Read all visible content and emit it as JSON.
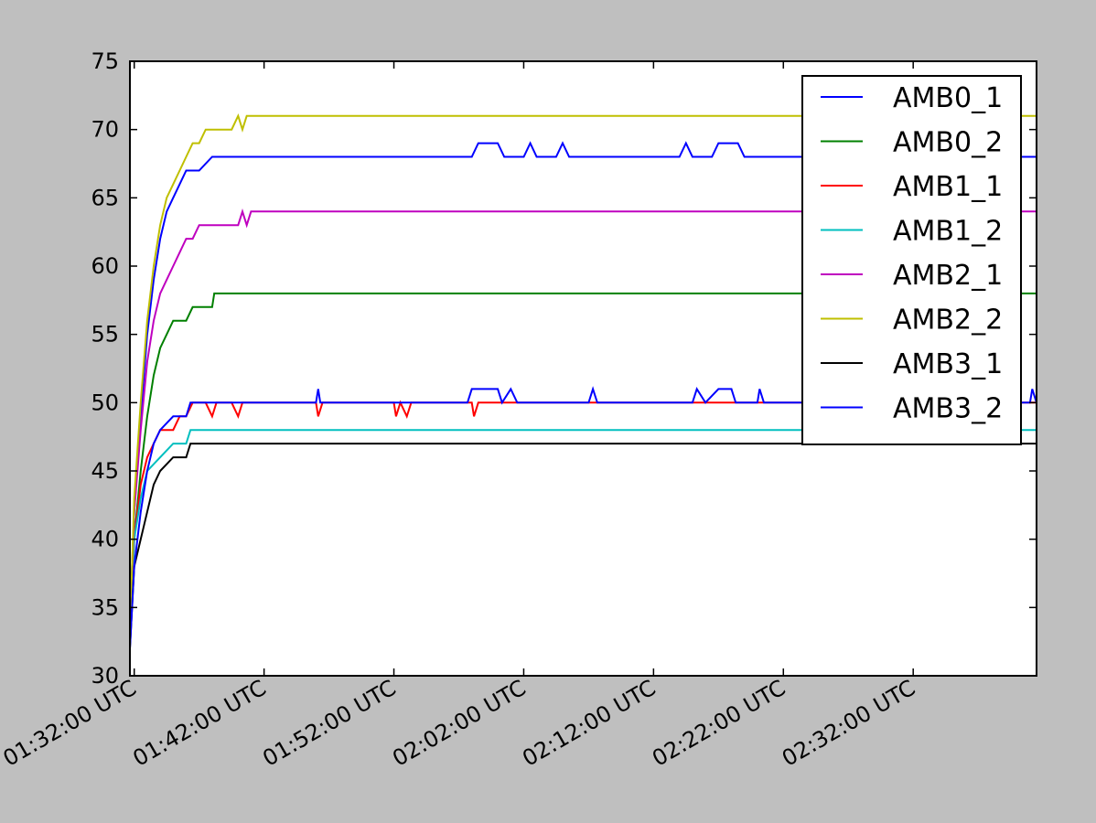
{
  "chart_data": {
    "type": "line",
    "title": "",
    "xlabel": "",
    "ylabel": "",
    "ylim": [
      30,
      75
    ],
    "yticks": [
      30,
      35,
      40,
      45,
      50,
      55,
      60,
      65,
      70,
      75
    ],
    "xlim": [
      "01:31:40 UTC",
      "02:41:30 UTC"
    ],
    "xticks": [
      "01:32:00 UTC",
      "01:42:00 UTC",
      "01:52:00 UTC",
      "02:02:00 UTC",
      "02:12:00 UTC",
      "02:22:00 UTC",
      "02:32:00 UTC"
    ],
    "legend": "top-right",
    "grid": false,
    "series": [
      {
        "name": "AMB0_1",
        "color": "#0000ff",
        "points": [
          [
            "01:31:40",
            34
          ],
          [
            "01:32:00",
            42
          ],
          [
            "01:32:30",
            49
          ],
          [
            "01:33:00",
            55
          ],
          [
            "01:33:30",
            59
          ],
          [
            "01:34:00",
            62
          ],
          [
            "01:34:30",
            64
          ],
          [
            "01:35:00",
            65
          ],
          [
            "01:35:30",
            66
          ],
          [
            "01:36:00",
            67
          ],
          [
            "01:37:00",
            67
          ],
          [
            "01:38:00",
            68
          ],
          [
            "01:58:00",
            68
          ],
          [
            "01:58:30",
            69
          ],
          [
            "02:00:00",
            69
          ],
          [
            "02:00:30",
            68
          ],
          [
            "02:02:00",
            68
          ],
          [
            "02:02:30",
            69
          ],
          [
            "02:03:00",
            68
          ],
          [
            "02:04:30",
            68
          ],
          [
            "02:05:00",
            69
          ],
          [
            "02:05:30",
            68
          ],
          [
            "02:14:00",
            68
          ],
          [
            "02:14:30",
            69
          ],
          [
            "02:15:00",
            68
          ],
          [
            "02:16:30",
            68
          ],
          [
            "02:17:00",
            69
          ],
          [
            "02:18:30",
            69
          ],
          [
            "02:19:00",
            68
          ],
          [
            "02:41:30",
            68
          ]
        ]
      },
      {
        "name": "AMB0_2",
        "color": "#008000",
        "points": [
          [
            "01:31:40",
            33
          ],
          [
            "01:32:00",
            40
          ],
          [
            "01:32:30",
            45
          ],
          [
            "01:33:00",
            49
          ],
          [
            "01:33:30",
            52
          ],
          [
            "01:34:00",
            54
          ],
          [
            "01:34:30",
            55
          ],
          [
            "01:35:00",
            56
          ],
          [
            "01:36:00",
            56
          ],
          [
            "01:36:30",
            57
          ],
          [
            "01:38:00",
            57
          ],
          [
            "01:38:10",
            58
          ],
          [
            "02:41:30",
            58
          ]
        ]
      },
      {
        "name": "AMB1_1",
        "color": "#ff0000",
        "points": [
          [
            "01:31:40",
            33
          ],
          [
            "01:32:00",
            40
          ],
          [
            "01:32:30",
            44
          ],
          [
            "01:33:00",
            46
          ],
          [
            "01:33:30",
            47
          ],
          [
            "01:34:00",
            48
          ],
          [
            "01:35:00",
            48
          ],
          [
            "01:35:30",
            49
          ],
          [
            "01:36:00",
            49
          ],
          [
            "01:36:30",
            50
          ],
          [
            "01:37:30",
            50
          ],
          [
            "01:38:00",
            49
          ],
          [
            "01:38:20",
            50
          ],
          [
            "01:39:30",
            50
          ],
          [
            "01:40:00",
            49
          ],
          [
            "01:40:20",
            50
          ],
          [
            "01:46:00",
            50
          ],
          [
            "01:46:10",
            49
          ],
          [
            "01:46:30",
            50
          ],
          [
            "01:52:00",
            50
          ],
          [
            "01:52:10",
            49
          ],
          [
            "01:52:30",
            50
          ],
          [
            "01:53:00",
            49
          ],
          [
            "01:53:20",
            50
          ],
          [
            "01:58:00",
            50
          ],
          [
            "01:58:10",
            49
          ],
          [
            "01:58:30",
            50
          ],
          [
            "02:41:30",
            50
          ]
        ]
      },
      {
        "name": "AMB1_2",
        "color": "#00bfbf",
        "points": [
          [
            "01:31:40",
            33
          ],
          [
            "01:32:00",
            40
          ],
          [
            "01:32:30",
            43
          ],
          [
            "01:33:00",
            45
          ],
          [
            "01:34:00",
            46
          ],
          [
            "01:35:00",
            47
          ],
          [
            "01:36:00",
            47
          ],
          [
            "01:36:20",
            48
          ],
          [
            "02:41:30",
            48
          ]
        ]
      },
      {
        "name": "AMB2_1",
        "color": "#bf00bf",
        "points": [
          [
            "01:31:40",
            33
          ],
          [
            "01:32:00",
            42
          ],
          [
            "01:32:30",
            48
          ],
          [
            "01:33:00",
            53
          ],
          [
            "01:33:30",
            56
          ],
          [
            "01:34:00",
            58
          ],
          [
            "01:34:30",
            59
          ],
          [
            "01:35:00",
            60
          ],
          [
            "01:35:30",
            61
          ],
          [
            "01:36:00",
            62
          ],
          [
            "01:36:30",
            62
          ],
          [
            "01:37:00",
            63
          ],
          [
            "01:40:00",
            63
          ],
          [
            "01:40:20",
            64
          ],
          [
            "01:40:40",
            63
          ],
          [
            "01:41:00",
            64
          ],
          [
            "02:41:30",
            64
          ]
        ]
      },
      {
        "name": "AMB2_2",
        "color": "#bfbf00",
        "points": [
          [
            "01:31:40",
            33
          ],
          [
            "01:32:00",
            43
          ],
          [
            "01:32:30",
            50
          ],
          [
            "01:33:00",
            56
          ],
          [
            "01:33:30",
            60
          ],
          [
            "01:34:00",
            63
          ],
          [
            "01:34:30",
            65
          ],
          [
            "01:35:00",
            66
          ],
          [
            "01:35:30",
            67
          ],
          [
            "01:36:00",
            68
          ],
          [
            "01:36:30",
            69
          ],
          [
            "01:37:00",
            69
          ],
          [
            "01:37:30",
            70
          ],
          [
            "01:39:30",
            70
          ],
          [
            "01:40:00",
            71
          ],
          [
            "01:40:20",
            70
          ],
          [
            "01:40:40",
            71
          ],
          [
            "02:41:30",
            71
          ]
        ]
      },
      {
        "name": "AMB3_1",
        "color": "#000000",
        "points": [
          [
            "01:31:40",
            32
          ],
          [
            "01:32:00",
            38
          ],
          [
            "01:32:30",
            40
          ],
          [
            "01:33:00",
            42
          ],
          [
            "01:33:30",
            44
          ],
          [
            "01:34:00",
            45
          ],
          [
            "01:35:00",
            46
          ],
          [
            "01:36:00",
            46
          ],
          [
            "01:36:20",
            47
          ],
          [
            "02:41:30",
            47
          ]
        ]
      },
      {
        "name": "AMB3_2",
        "color": "#0000ff",
        "points": [
          [
            "01:31:40",
            32
          ],
          [
            "01:32:00",
            38
          ],
          [
            "01:32:30",
            42
          ],
          [
            "01:33:00",
            45
          ],
          [
            "01:33:30",
            47
          ],
          [
            "01:34:00",
            48
          ],
          [
            "01:35:00",
            49
          ],
          [
            "01:36:00",
            49
          ],
          [
            "01:36:20",
            50
          ],
          [
            "01:46:00",
            50
          ],
          [
            "01:46:10",
            51
          ],
          [
            "01:46:20",
            50
          ],
          [
            "01:57:40",
            50
          ],
          [
            "01:58:00",
            51
          ],
          [
            "02:00:00",
            51
          ],
          [
            "02:00:20",
            50
          ],
          [
            "02:01:00",
            51
          ],
          [
            "02:01:30",
            50
          ],
          [
            "02:07:00",
            50
          ],
          [
            "02:07:20",
            51
          ],
          [
            "02:07:40",
            50
          ],
          [
            "02:15:00",
            50
          ],
          [
            "02:15:20",
            51
          ],
          [
            "02:16:00",
            50
          ],
          [
            "02:17:00",
            51
          ],
          [
            "02:18:00",
            51
          ],
          [
            "02:18:20",
            50
          ],
          [
            "02:20:00",
            50
          ],
          [
            "02:20:10",
            51
          ],
          [
            "02:20:30",
            50
          ],
          [
            "02:25:00",
            50
          ],
          [
            "02:25:10",
            51
          ],
          [
            "02:25:30",
            50
          ],
          [
            "02:41:00",
            50
          ],
          [
            "02:41:10",
            51
          ],
          [
            "02:41:30",
            50
          ]
        ]
      }
    ]
  }
}
